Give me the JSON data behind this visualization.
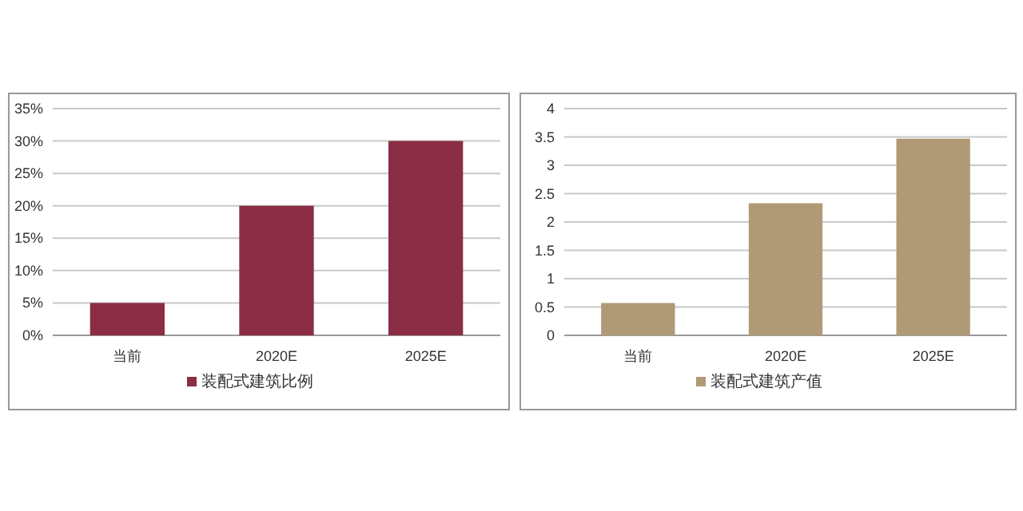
{
  "chart_data": [
    {
      "type": "bar",
      "categories": [
        "当前",
        "2020E",
        "2025E"
      ],
      "series": [
        {
          "name": "装配式建筑比例",
          "color": "#8b2d45",
          "values": [
            5,
            20,
            30
          ]
        }
      ],
      "ylim": [
        0,
        35
      ],
      "yticks": [
        {
          "value": 0,
          "label": "0%"
        },
        {
          "value": 5,
          "label": "5%"
        },
        {
          "value": 10,
          "label": "10%"
        },
        {
          "value": 15,
          "label": "15%"
        },
        {
          "value": 20,
          "label": "20%"
        },
        {
          "value": 25,
          "label": "25%"
        },
        {
          "value": 30,
          "label": "30%"
        },
        {
          "value": 35,
          "label": "35%"
        }
      ],
      "grid": "y",
      "legend": "bottom"
    },
    {
      "type": "bar",
      "categories": [
        "当前",
        "2020E",
        "2025E"
      ],
      "series": [
        {
          "name": "装配式建筑产值",
          "color": "#b09a76",
          "values": [
            0.57,
            2.33,
            3.47
          ]
        }
      ],
      "ylim": [
        0,
        4
      ],
      "yticks": [
        0,
        0.5,
        1,
        1.5,
        2,
        2.5,
        3,
        3.5,
        4
      ],
      "grid": "y",
      "legend": "bottom"
    }
  ]
}
